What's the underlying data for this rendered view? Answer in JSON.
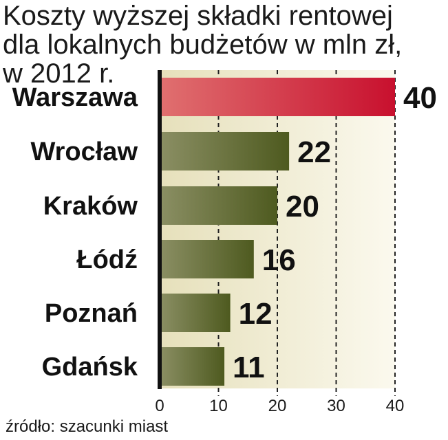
{
  "chart_data": {
    "type": "bar",
    "orientation": "horizontal",
    "title_lines": [
      "Koszty wyższej składki rentowej",
      "dla lokalnych budżetów w mln zł,",
      "w 2012 r."
    ],
    "categories": [
      "Warszawa",
      "Wrocław",
      "Kraków",
      "Łódź",
      "Poznań",
      "Gdańsk"
    ],
    "values": [
      40,
      22,
      20,
      16,
      12,
      11
    ],
    "value_labels": [
      "40",
      "22",
      "20",
      "16",
      "12",
      "11"
    ],
    "xticks": [
      0,
      10,
      20,
      30,
      40
    ],
    "xtick_labels": [
      "0",
      "10",
      "20",
      "30",
      "40"
    ],
    "xlim": [
      0,
      40
    ],
    "grid": "vertical dashed",
    "source": "źródło: szacunki miast",
    "colors": {
      "highlight_bar": "#c8102e",
      "bar": "#5c6a2a",
      "background": "#f4f1d6"
    }
  }
}
